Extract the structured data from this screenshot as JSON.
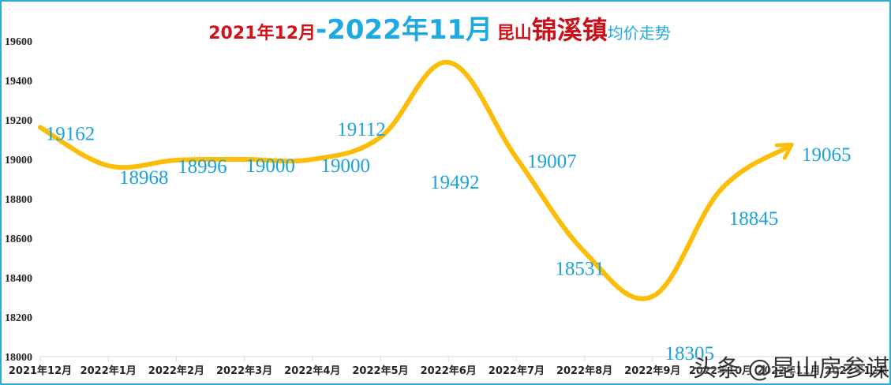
{
  "title": {
    "part1": "2021年12月",
    "dash": "-",
    "part2": "2022年11月",
    "part3": "昆山",
    "part4": "锦溪镇",
    "part5": "均价走势"
  },
  "watermark": "头条 @昆山房参谋",
  "colors": {
    "line": "#fbbd08",
    "label": "#1aa3d8",
    "title_red": "#d0121b",
    "title_blue": "#1fa9e1",
    "border": "#2aaed6"
  },
  "chart_data": {
    "type": "line",
    "title": "2021年12月-2022年11月昆山锦溪镇均价走势",
    "xlabel": "",
    "ylabel": "",
    "ylim": [
      18000,
      19600
    ],
    "yticks": [
      18000,
      18200,
      18400,
      18600,
      18800,
      19000,
      19200,
      19400,
      19600
    ],
    "categories": [
      "2021年12月",
      "2022年1月",
      "2022年2月",
      "2022年3月",
      "2022年4月",
      "2022年5月",
      "2022年6月",
      "2022年7月",
      "2022年8月",
      "2022年9月",
      "2022年10月",
      "2022年11月",
      "2022年12月"
    ],
    "series": [
      {
        "name": "均价",
        "values": [
          19162,
          18968,
          18996,
          19000,
          19000,
          19112,
          19492,
          19007,
          18531,
          18305,
          18845,
          19065
        ],
        "smooth": true,
        "end_arrow": true
      }
    ],
    "data_labels": [
      "19162",
      "18968",
      "18996",
      "19000",
      "19000",
      "19112",
      "19492",
      "19007",
      "18531",
      "18305",
      "18845",
      "19065"
    ],
    "grid": false,
    "legend": "none"
  }
}
